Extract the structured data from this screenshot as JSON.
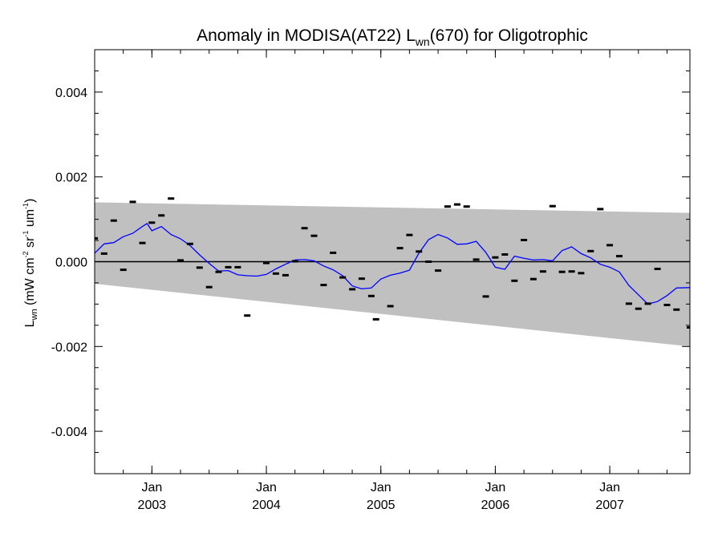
{
  "chart_data": {
    "type": "scatter",
    "title": {
      "prefix": "Anomaly in MODISA(AT22) L",
      "subscript": "wn",
      "suffix": "(670) for Oligotrophic"
    },
    "xlabel": "",
    "ylabel": {
      "L": "L",
      "wn": "wn",
      "open": " (mW cm",
      "exp1": "-2",
      "mid": " sr",
      "exp2": "-1",
      "unit": " um",
      "exp3": "-1",
      "close": ")"
    },
    "x_ticks": [
      {
        "month": "Jan",
        "year": "2003",
        "x": 2003.0
      },
      {
        "month": "Jan",
        "year": "2004",
        "x": 2004.0
      },
      {
        "month": "Jan",
        "year": "2005",
        "x": 2005.0
      },
      {
        "month": "Jan",
        "year": "2006",
        "x": 2006.0
      },
      {
        "month": "Jan",
        "year": "2007",
        "x": 2007.0
      }
    ],
    "y_ticks": [
      {
        "label": "0.004",
        "y": 0.004
      },
      {
        "label": "0.002",
        "y": 0.002
      },
      {
        "label": "0.000",
        "y": 0.0
      },
      {
        "label": "-0.002",
        "y": -0.002
      },
      {
        "label": "-0.004",
        "y": -0.004
      }
    ],
    "xlim": [
      2002.5,
      2007.7
    ],
    "ylim": [
      -0.005,
      0.005
    ],
    "grid": false,
    "zero_line": 0.0,
    "band": {
      "color": "#c0c0c0",
      "x": [
        2002.5,
        2007.7
      ],
      "upper": [
        0.0014,
        0.00115
      ],
      "lower": [
        -0.00052,
        -0.002
      ]
    },
    "points_color": "#000000",
    "line_color": "#0000ff",
    "points": [
      {
        "x": 2002.5,
        "y": 0.00055
      },
      {
        "x": 2002.583,
        "y": 0.00019
      },
      {
        "x": 2002.667,
        "y": 0.00097
      },
      {
        "x": 2002.75,
        "y": -0.00019
      },
      {
        "x": 2002.833,
        "y": 0.00141
      },
      {
        "x": 2002.917,
        "y": 0.00044
      },
      {
        "x": 2003.0,
        "y": 0.00092
      },
      {
        "x": 2003.083,
        "y": 0.00109
      },
      {
        "x": 2003.167,
        "y": 0.00149
      },
      {
        "x": 2003.25,
        "y": 3e-05
      },
      {
        "x": 2003.333,
        "y": 0.00042
      },
      {
        "x": 2003.417,
        "y": -0.00014
      },
      {
        "x": 2003.5,
        "y": -0.0006
      },
      {
        "x": 2003.583,
        "y": -0.00024
      },
      {
        "x": 2003.667,
        "y": -0.00013
      },
      {
        "x": 2003.75,
        "y": -0.00013
      },
      {
        "x": 2003.833,
        "y": -0.00127
      },
      {
        "x": 2004.0,
        "y": -3e-05
      },
      {
        "x": 2004.083,
        "y": -0.00028
      },
      {
        "x": 2004.167,
        "y": -0.00032
      },
      {
        "x": 2004.25,
        "y": 1e-05
      },
      {
        "x": 2004.333,
        "y": 0.00079
      },
      {
        "x": 2004.417,
        "y": 0.00061
      },
      {
        "x": 2004.5,
        "y": -0.00055
      },
      {
        "x": 2004.583,
        "y": 0.00021
      },
      {
        "x": 2004.667,
        "y": -0.00037
      },
      {
        "x": 2004.75,
        "y": -0.00065
      },
      {
        "x": 2004.833,
        "y": -0.0004
      },
      {
        "x": 2004.917,
        "y": -0.00081
      },
      {
        "x": 2004.958,
        "y": -0.00136
      },
      {
        "x": 2005.083,
        "y": -0.00105
      },
      {
        "x": 2005.167,
        "y": 0.00032
      },
      {
        "x": 2005.25,
        "y": 0.00063
      },
      {
        "x": 2005.333,
        "y": 0.00024
      },
      {
        "x": 2005.417,
        "y": 0.0
      },
      {
        "x": 2005.5,
        "y": -0.00021
      },
      {
        "x": 2005.583,
        "y": 0.0013
      },
      {
        "x": 2005.667,
        "y": 0.00135
      },
      {
        "x": 2005.75,
        "y": 0.0013
      },
      {
        "x": 2005.833,
        "y": 5e-05
      },
      {
        "x": 2005.917,
        "y": -0.00082
      },
      {
        "x": 2006.0,
        "y": 0.0001
      },
      {
        "x": 2006.083,
        "y": 0.00017
      },
      {
        "x": 2006.167,
        "y": -0.00045
      },
      {
        "x": 2006.25,
        "y": 0.00051
      },
      {
        "x": 2006.333,
        "y": -0.00041
      },
      {
        "x": 2006.417,
        "y": -0.00023
      },
      {
        "x": 2006.5,
        "y": 0.00131
      },
      {
        "x": 2006.583,
        "y": -0.00024
      },
      {
        "x": 2006.667,
        "y": -0.00023
      },
      {
        "x": 2006.75,
        "y": -0.00027
      },
      {
        "x": 2006.833,
        "y": 0.00025
      },
      {
        "x": 2006.917,
        "y": 0.00124
      },
      {
        "x": 2007.0,
        "y": 0.00039
      },
      {
        "x": 2007.083,
        "y": 0.00013
      },
      {
        "x": 2007.167,
        "y": -0.00099
      },
      {
        "x": 2007.25,
        "y": -0.00111
      },
      {
        "x": 2007.333,
        "y": -0.00099
      },
      {
        "x": 2007.417,
        "y": -0.00017
      },
      {
        "x": 2007.5,
        "y": -0.00102
      },
      {
        "x": 2007.583,
        "y": -0.00113
      },
      {
        "x": 2007.7,
        "y": -0.00155
      }
    ],
    "smooth_line": {
      "x": [
        2002.5,
        2002.583,
        2002.667,
        2002.75,
        2002.833,
        2002.917,
        2002.958,
        2003.0,
        2003.083,
        2003.167,
        2003.25,
        2003.333,
        2003.417,
        2003.5,
        2003.583,
        2003.667,
        2003.75,
        2003.833,
        2003.917,
        2004.0,
        2004.083,
        2004.167,
        2004.25,
        2004.333,
        2004.417,
        2004.5,
        2004.583,
        2004.667,
        2004.75,
        2004.833,
        2004.917,
        2005.0,
        2005.083,
        2005.167,
        2005.25,
        2005.333,
        2005.417,
        2005.5,
        2005.583,
        2005.667,
        2005.75,
        2005.833,
        2005.917,
        2006.0,
        2006.083,
        2006.167,
        2006.25,
        2006.333,
        2006.417,
        2006.5,
        2006.583,
        2006.667,
        2006.75,
        2006.833,
        2006.917,
        2007.0,
        2007.083,
        2007.167,
        2007.25,
        2007.333,
        2007.417,
        2007.5,
        2007.583,
        2007.7
      ],
      "y": [
        0.0002,
        0.00042,
        0.00045,
        0.00059,
        0.00067,
        0.00083,
        0.0009,
        0.00073,
        0.00083,
        0.00064,
        0.00054,
        0.00038,
        0.00016,
        -4e-05,
        -0.00022,
        -0.00021,
        -0.00031,
        -0.00033,
        -0.00034,
        -0.0003,
        -0.00017,
        -6e-05,
        4e-05,
        5e-05,
        2e-05,
        -0.0001,
        -0.00019,
        -0.00033,
        -0.00057,
        -0.00064,
        -0.00062,
        -0.00041,
        -0.00032,
        -0.00027,
        -0.0002,
        0.0002,
        0.00052,
        0.00064,
        0.00056,
        0.00041,
        0.00042,
        0.00048,
        0.00022,
        -0.00013,
        -0.00018,
        0.00013,
        8e-05,
        4e-05,
        5e-05,
        2e-05,
        0.00026,
        0.00035,
        0.00019,
        9e-05,
        -6e-05,
        -0.00013,
        -0.00024,
        -0.00056,
        -0.00078,
        -0.001,
        -0.00094,
        -0.0008,
        -0.00062,
        -0.00061
      ]
    }
  }
}
